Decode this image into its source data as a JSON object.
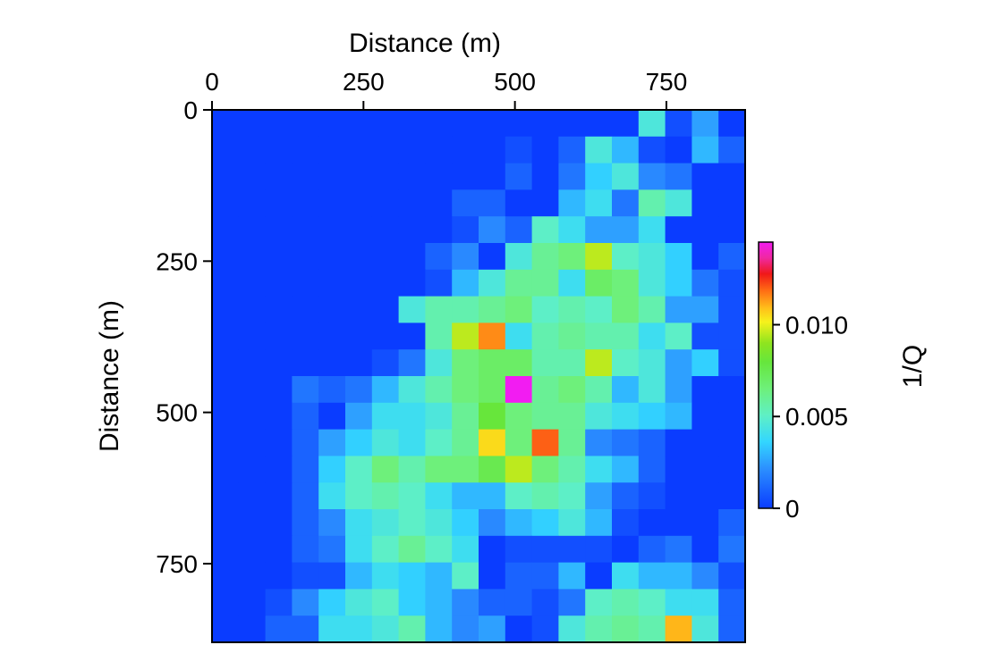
{
  "chart_data": {
    "type": "heatmap",
    "title": "",
    "xlabel": "Distance (m)",
    "ylabel": "Distance (m)",
    "x_axis_position": "top",
    "y_axis_direction": "down",
    "xlim": [
      0,
      880
    ],
    "ylim": [
      0,
      880
    ],
    "x_ticks": [
      0,
      250,
      500,
      750
    ],
    "x_tick_labels": [
      "0",
      "250",
      "500",
      "750"
    ],
    "y_ticks": [
      0,
      250,
      500,
      750
    ],
    "y_tick_labels": [
      "0",
      "250",
      "500",
      "750"
    ],
    "cell_size_m": 44,
    "grid_rows": 20,
    "grid_cols": 20,
    "values_1e4": [
      [
        0,
        0,
        0,
        0,
        0,
        0,
        0,
        0,
        0,
        0,
        0,
        0,
        0,
        0,
        0,
        0,
        45,
        5,
        25,
        0
      ],
      [
        0,
        0,
        0,
        0,
        0,
        0,
        0,
        0,
        0,
        0,
        0,
        5,
        0,
        10,
        45,
        30,
        5,
        0,
        30,
        10
      ],
      [
        0,
        0,
        0,
        0,
        0,
        0,
        0,
        0,
        0,
        0,
        0,
        10,
        0,
        15,
        35,
        45,
        20,
        15,
        0,
        0
      ],
      [
        0,
        0,
        0,
        0,
        0,
        0,
        0,
        0,
        0,
        10,
        10,
        0,
        0,
        30,
        40,
        15,
        55,
        45,
        0,
        0
      ],
      [
        0,
        0,
        0,
        0,
        0,
        0,
        0,
        0,
        0,
        5,
        20,
        10,
        50,
        40,
        25,
        25,
        40,
        0,
        0,
        0
      ],
      [
        0,
        0,
        0,
        0,
        0,
        0,
        0,
        0,
        10,
        20,
        0,
        45,
        60,
        65,
        95,
        50,
        45,
        35,
        0,
        10
      ],
      [
        0,
        0,
        0,
        0,
        0,
        0,
        0,
        0,
        5,
        30,
        45,
        60,
        60,
        40,
        70,
        65,
        45,
        35,
        15,
        5
      ],
      [
        0,
        0,
        0,
        0,
        0,
        0,
        0,
        45,
        55,
        55,
        60,
        65,
        50,
        55,
        50,
        65,
        55,
        25,
        25,
        5
      ],
      [
        0,
        0,
        0,
        0,
        0,
        0,
        0,
        0,
        55,
        95,
        115,
        40,
        55,
        60,
        55,
        55,
        40,
        50,
        5,
        5
      ],
      [
        0,
        0,
        0,
        0,
        0,
        0,
        5,
        15,
        45,
        65,
        70,
        70,
        55,
        55,
        95,
        50,
        45,
        25,
        35,
        5
      ],
      [
        0,
        0,
        0,
        15,
        10,
        15,
        30,
        45,
        55,
        65,
        70,
        145,
        60,
        65,
        55,
        30,
        45,
        25,
        0,
        0
      ],
      [
        0,
        0,
        0,
        10,
        0,
        25,
        40,
        40,
        45,
        60,
        80,
        65,
        60,
        60,
        45,
        40,
        35,
        30,
        0,
        0
      ],
      [
        0,
        0,
        0,
        10,
        25,
        35,
        45,
        40,
        50,
        60,
        105,
        65,
        120,
        60,
        20,
        15,
        10,
        0,
        0,
        0
      ],
      [
        0,
        0,
        0,
        10,
        35,
        50,
        65,
        55,
        65,
        65,
        75,
        95,
        65,
        55,
        40,
        30,
        10,
        0,
        0,
        0
      ],
      [
        0,
        0,
        0,
        10,
        40,
        50,
        55,
        50,
        40,
        30,
        30,
        50,
        55,
        50,
        25,
        10,
        5,
        0,
        0,
        0
      ],
      [
        0,
        0,
        0,
        10,
        20,
        40,
        45,
        50,
        45,
        35,
        20,
        30,
        35,
        45,
        30,
        5,
        0,
        0,
        0,
        10
      ],
      [
        0,
        0,
        0,
        10,
        15,
        40,
        50,
        60,
        50,
        40,
        0,
        5,
        5,
        5,
        5,
        0,
        10,
        15,
        0,
        15
      ],
      [
        0,
        0,
        0,
        5,
        5,
        30,
        40,
        35,
        30,
        50,
        0,
        10,
        10,
        30,
        0,
        40,
        30,
        30,
        20,
        5
      ],
      [
        0,
        0,
        5,
        20,
        35,
        45,
        50,
        35,
        30,
        20,
        10,
        10,
        5,
        15,
        50,
        55,
        50,
        40,
        40,
        10
      ],
      [
        0,
        0,
        10,
        10,
        40,
        40,
        45,
        55,
        30,
        20,
        25,
        0,
        5,
        45,
        55,
        60,
        55,
        110,
        45,
        10
      ]
    ],
    "value_scale": 0.0001,
    "colorbar": {
      "label": "1/Q",
      "min": 0,
      "max": 0.0145,
      "ticks": [
        0,
        0.005,
        0.01
      ],
      "tick_labels": [
        "0",
        "0.005",
        "0.010"
      ],
      "colormap": [
        [
          0.0,
          "#0a3cff"
        ],
        [
          0.15,
          "#2c90ff"
        ],
        [
          0.25,
          "#33d6ff"
        ],
        [
          0.35,
          "#5ff0c4"
        ],
        [
          0.45,
          "#6ef07a"
        ],
        [
          0.55,
          "#66e63c"
        ],
        [
          0.62,
          "#8ee41f"
        ],
        [
          0.7,
          "#f6f21c"
        ],
        [
          0.75,
          "#ffc11a"
        ],
        [
          0.82,
          "#ff6a14"
        ],
        [
          0.88,
          "#f01818"
        ],
        [
          0.94,
          "#f028a0"
        ],
        [
          1.0,
          "#f21cf2"
        ]
      ]
    },
    "grid": false,
    "legend_placement": "right"
  }
}
